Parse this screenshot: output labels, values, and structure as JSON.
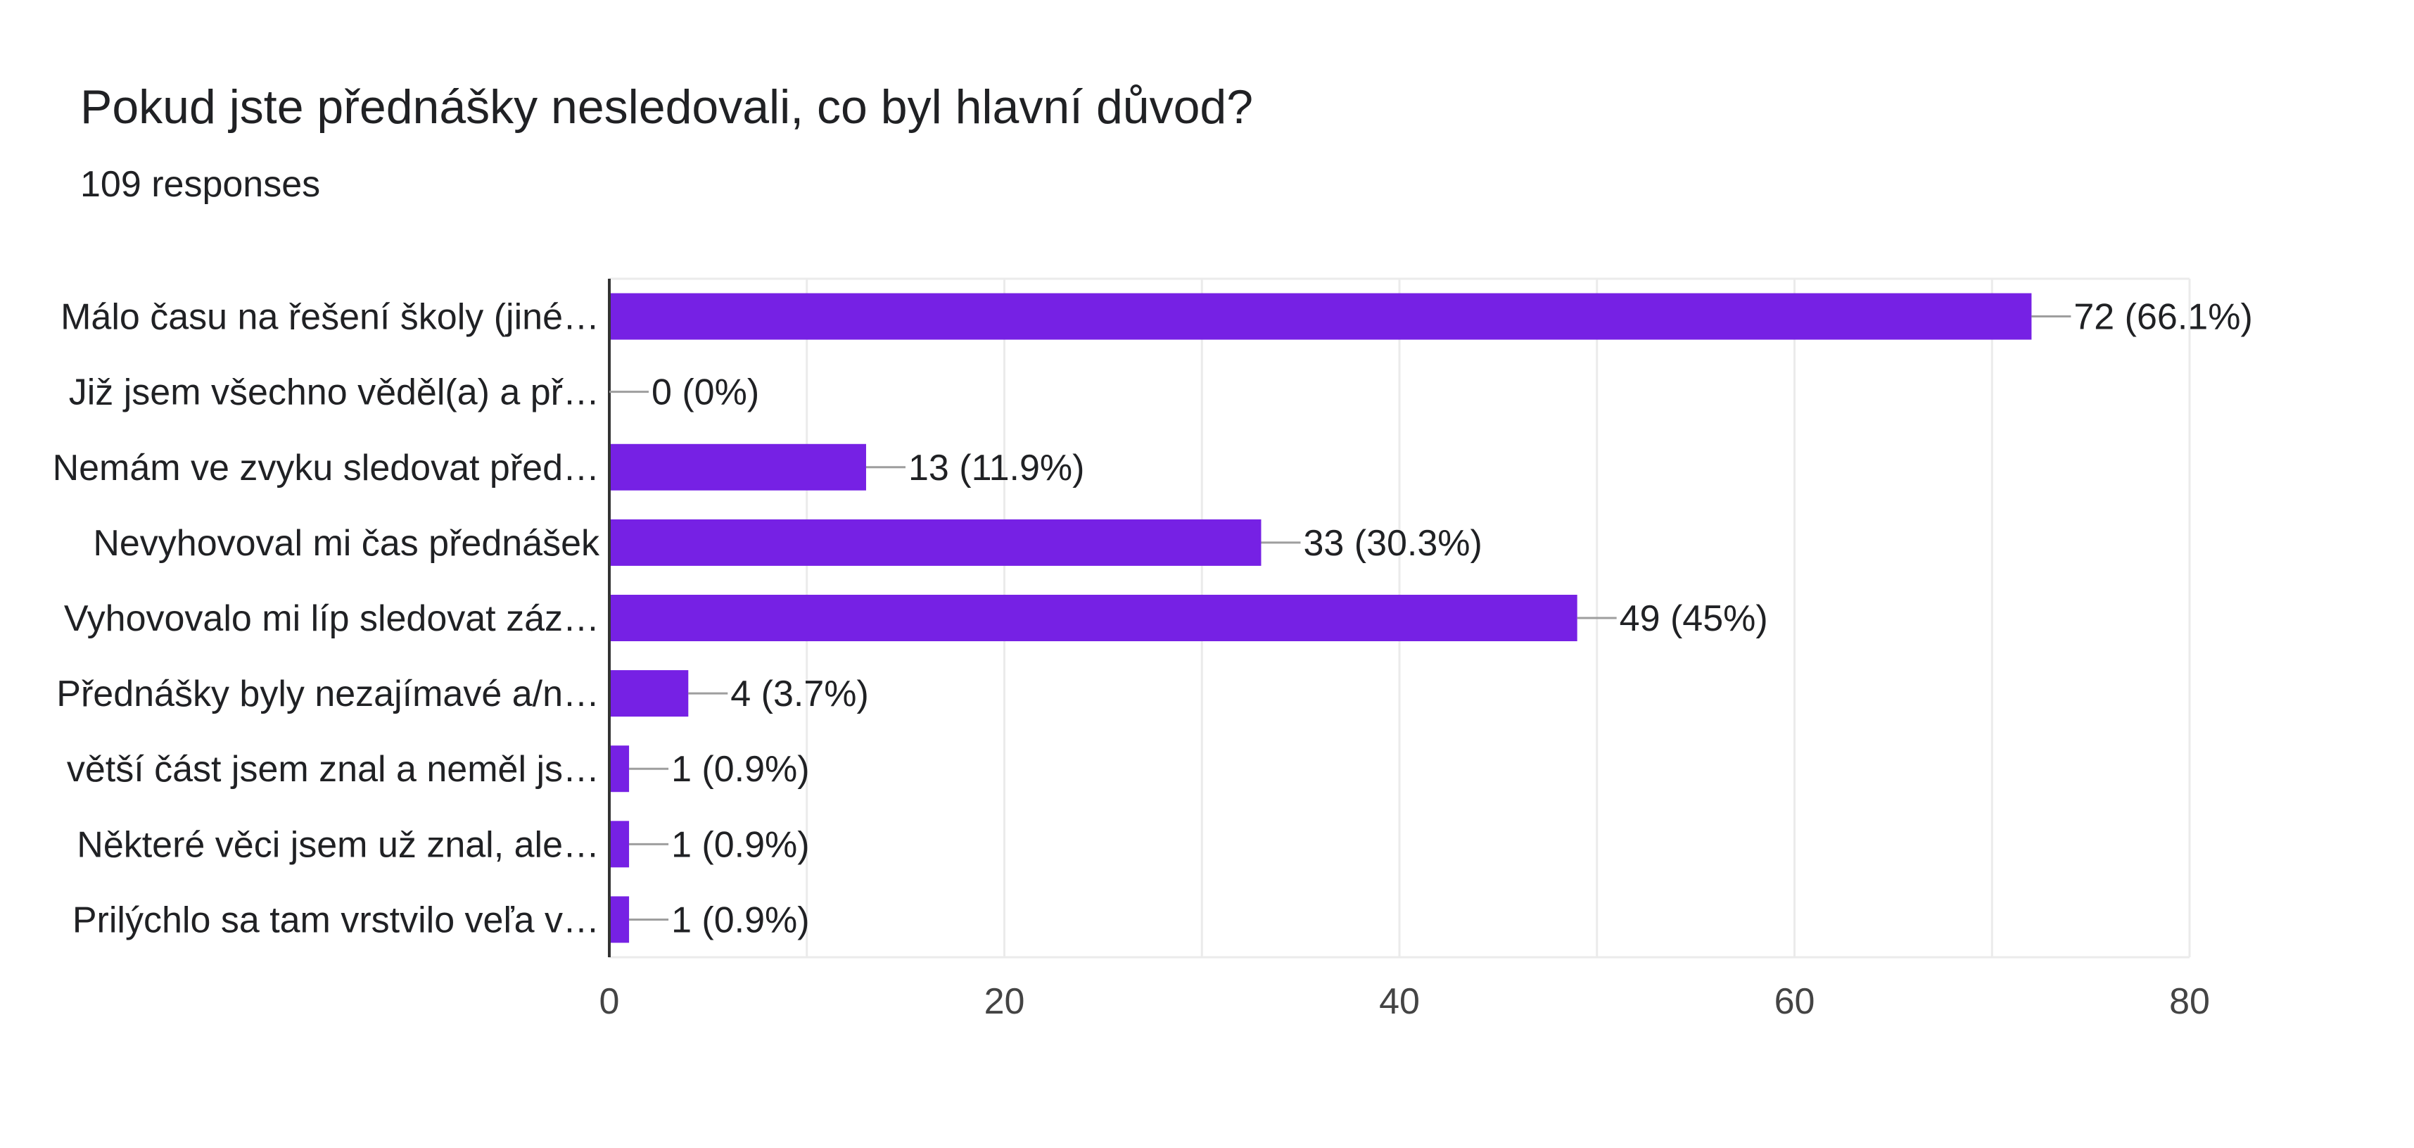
{
  "header": {
    "title": "Pokud jste přednášky nesledovali, co byl hlavní důvod?",
    "subtitle": "109 responses"
  },
  "colors": {
    "bar": "#7621e4",
    "grid": "#ebebeb",
    "axis": "#333333",
    "leader": "#9e9e9e"
  },
  "chart_data": {
    "type": "bar",
    "orientation": "horizontal",
    "title": "Pokud jste přednášky nesledovali, co byl hlavní důvod?",
    "categories": [
      "Málo času na řešení školy (jiné…",
      "Již jsem všechno věděl(a) a př…",
      "Nemám ve zvyku sledovat před…",
      "Nevyhovoval mi čas přednášek",
      "Vyhovovalo mi líp sledovat záz…",
      "Přednášky byly nezajímavé a/n…",
      "větší část jsem znal a neměl js…",
      "Některé věci jsem už znal, ale…",
      "Prilýchlo sa tam vrstvilo veľa v…"
    ],
    "values": [
      72,
      0,
      13,
      33,
      49,
      4,
      1,
      1,
      1
    ],
    "data_labels": [
      "72 (66.1%)",
      "0 (0%)",
      "13 (11.9%)",
      "33 (30.3%)",
      "49 (45%)",
      "4 (3.7%)",
      "1 (0.9%)",
      "1 (0.9%)",
      "1 (0.9%)"
    ],
    "xlim": [
      0,
      80
    ],
    "xticks": [
      0,
      20,
      40,
      60,
      80
    ],
    "xtick_labels": [
      "0",
      "20",
      "40",
      "60",
      "80"
    ],
    "grid": true,
    "legend": "none"
  }
}
